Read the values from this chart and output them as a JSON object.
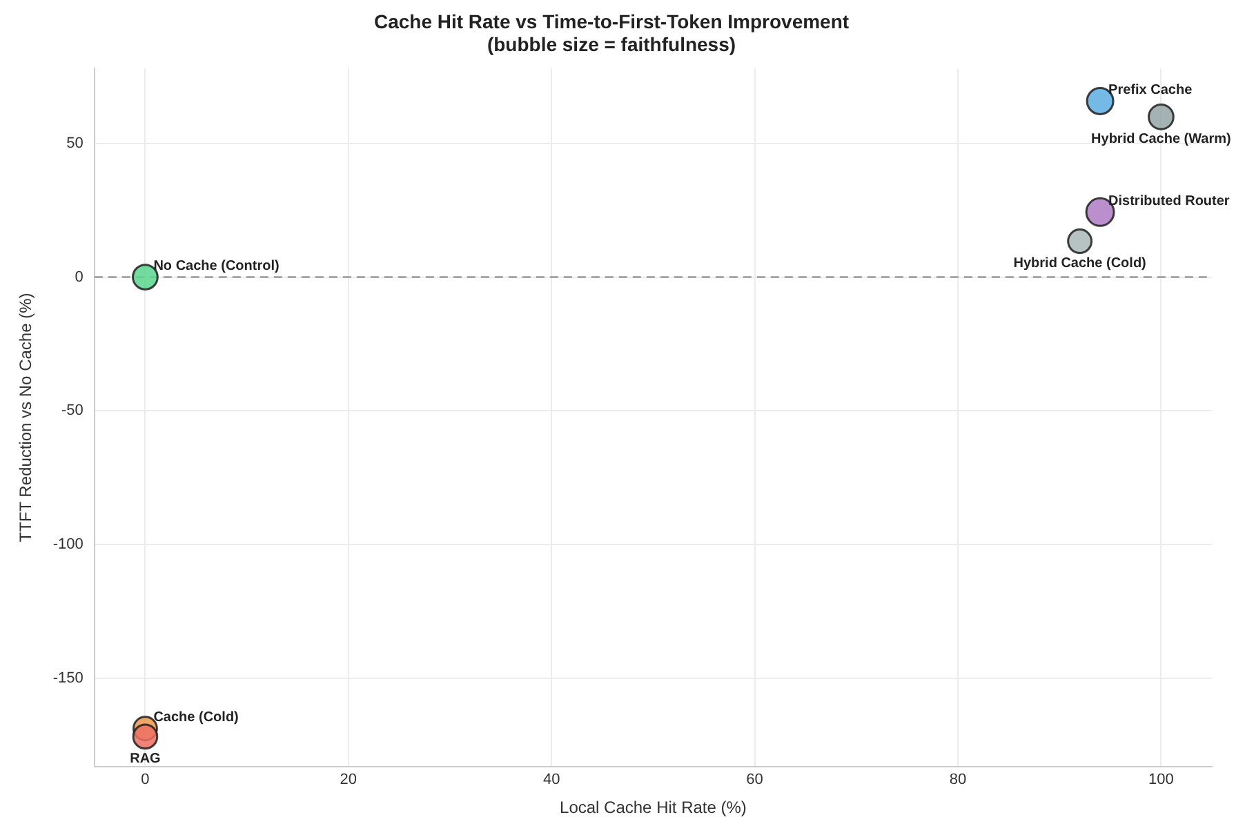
{
  "chart_data": {
    "type": "bubble",
    "title": "Cache Hit Rate vs Time-to-First-Token Improvement",
    "subtitle": "(bubble size = faithfulness)",
    "xlabel": "Local Cache Hit Rate (%)",
    "ylabel": "TTFT Reduction vs No Cache (%)",
    "x": [
      94,
      100,
      94,
      92,
      0,
      0,
      0
    ],
    "values": [
      65.8,
      59.9,
      24.3,
      13.4,
      0,
      -168.8,
      -171.8
    ],
    "sizes": [
      0.9,
      0.8,
      1,
      0.72,
      0.8,
      0.72,
      0.75
    ],
    "colors": [
      "#5dade2",
      "#95a5a6",
      "#af7ac5",
      "#aab7b8",
      "#58d68d",
      "#eb984e",
      "#ec7063"
    ],
    "xlim": [
      -5,
      105
    ],
    "xticks": [
      0,
      20,
      40,
      60,
      80,
      100
    ],
    "ylim": [
      -183,
      78
    ],
    "yticks": [
      -150,
      -100,
      -50,
      0,
      50
    ],
    "grid": true,
    "legend": false,
    "ref_lines": [
      {
        "axis": "y",
        "value": 0,
        "color": "#999999",
        "line_style": "dashed"
      }
    ],
    "annotations": [
      {
        "text": "Prefix Cache",
        "x": 94,
        "y": 65.8
      },
      {
        "text": "Hybrid Cache (Warm)",
        "x": 100,
        "y": 59.9
      },
      {
        "text": "Distributed Router",
        "x": 94,
        "y": 24.3
      },
      {
        "text": "Hybrid Cache (Cold)",
        "x": 92,
        "y": 13.4
      },
      {
        "text": "No Cache (Control)",
        "x": 0,
        "y": 0
      },
      {
        "text": "Cache (Cold)",
        "x": 0,
        "y": -168.8
      },
      {
        "text": "RAG",
        "x": 0,
        "y": -171.8
      }
    ]
  }
}
